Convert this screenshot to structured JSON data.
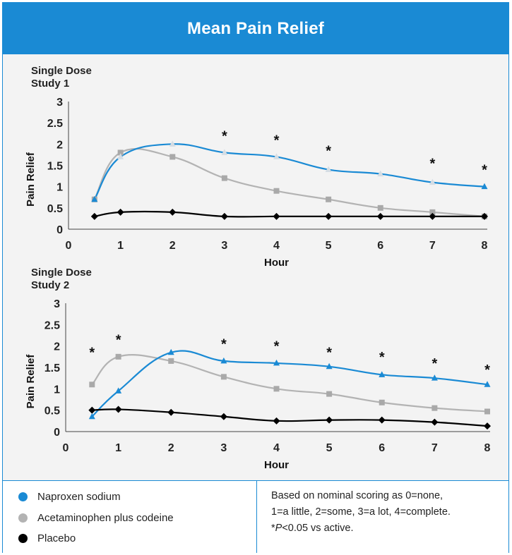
{
  "title": "Mean Pain Relief",
  "legend": [
    {
      "label": "Naproxen sodium",
      "color": "#1a8ad4"
    },
    {
      "label": "Acetaminophen plus codeine",
      "color": "#b3b3b3"
    },
    {
      "label": "Placebo",
      "color": "#000000"
    }
  ],
  "note": {
    "line1": "Based on nominal scoring as 0=none,",
    "line2": "1=a little, 2=some, 3=a lot, 4=complete.",
    "p_prefix": "*",
    "p_italic": "P",
    "p_suffix": "<0.05 vs active."
  },
  "chart_data": [
    {
      "type": "line",
      "title": "Single Dose Study 1",
      "title_lines": [
        "Single Dose",
        "Study 1"
      ],
      "xlabel": "Hour",
      "ylabel": "Pain Relief",
      "xlim": [
        0,
        8
      ],
      "ylim": [
        0,
        3
      ],
      "xticks": [
        0,
        1,
        2,
        3,
        4,
        5,
        6,
        7,
        8
      ],
      "yticks": [
        0,
        0.5,
        1,
        1.5,
        2,
        2.5,
        3
      ],
      "yticklabels": [
        "0",
        "0.5",
        "1",
        "1.5",
        "2",
        "2.5",
        "3"
      ],
      "series": [
        {
          "name": "Naproxen sodium",
          "color": "#1a8ad4",
          "marker": "triangle",
          "x": [
            0.5,
            1,
            2,
            3,
            4,
            5,
            6,
            7,
            8
          ],
          "values": [
            0.7,
            1.7,
            2.0,
            1.8,
            1.7,
            1.4,
            1.3,
            1.1,
            1.0
          ]
        },
        {
          "name": "Acetaminophen plus codeine",
          "color": "#b3b3b3",
          "marker": "square",
          "x": [
            0.5,
            1,
            2,
            3,
            4,
            5,
            6,
            7,
            8
          ],
          "values": [
            0.7,
            1.8,
            1.7,
            1.2,
            0.9,
            0.7,
            0.5,
            0.4,
            0.3
          ]
        },
        {
          "name": "Placebo",
          "color": "#000000",
          "marker": "diamond",
          "x": [
            0.5,
            1,
            2,
            3,
            4,
            5,
            6,
            7,
            8
          ],
          "values": [
            0.3,
            0.4,
            0.4,
            0.3,
            0.3,
            0.3,
            0.3,
            0.3,
            0.3
          ]
        }
      ],
      "significance": [
        {
          "x": 3,
          "y": 2.25,
          "label": "*"
        },
        {
          "x": 4,
          "y": 2.15,
          "label": "*"
        },
        {
          "x": 5,
          "y": 1.9,
          "label": "*"
        },
        {
          "x": 7,
          "y": 1.6,
          "label": "*"
        },
        {
          "x": 8,
          "y": 1.45,
          "label": "*"
        }
      ]
    },
    {
      "type": "line",
      "title": "Single Dose Study 2",
      "title_lines": [
        "Single Dose",
        "Study 2"
      ],
      "xlabel": "Hour",
      "ylabel": "Pain Relief",
      "xlim": [
        0,
        8
      ],
      "ylim": [
        0,
        3
      ],
      "xticks": [
        0,
        1,
        2,
        3,
        4,
        5,
        6,
        7,
        8
      ],
      "yticks": [
        0,
        0.5,
        1,
        1.5,
        2,
        2.5,
        3
      ],
      "yticklabels": [
        "0",
        "0.5",
        "1",
        "1.5",
        "2",
        "2.5",
        "3"
      ],
      "series": [
        {
          "name": "Naproxen sodium",
          "color": "#1a8ad4",
          "marker": "triangle",
          "x": [
            0.5,
            1,
            2,
            3,
            4,
            5,
            6,
            7,
            8
          ],
          "values": [
            0.35,
            0.95,
            1.85,
            1.65,
            1.6,
            1.52,
            1.33,
            1.25,
            1.1
          ]
        },
        {
          "name": "Acetaminophen plus codeine",
          "color": "#b3b3b3",
          "marker": "square",
          "x": [
            0.5,
            1,
            2,
            3,
            4,
            5,
            6,
            7,
            8
          ],
          "values": [
            1.1,
            1.75,
            1.65,
            1.28,
            1.0,
            0.88,
            0.68,
            0.55,
            0.47
          ]
        },
        {
          "name": "Placebo",
          "color": "#000000",
          "marker": "diamond",
          "x": [
            0.5,
            1,
            2,
            3,
            4,
            5,
            6,
            7,
            8
          ],
          "values": [
            0.5,
            0.52,
            0.45,
            0.35,
            0.25,
            0.27,
            0.27,
            0.22,
            0.13
          ]
        }
      ],
      "significance": [
        {
          "x": 0.5,
          "y": 1.9,
          "label": "*"
        },
        {
          "x": 1,
          "y": 2.2,
          "label": "*"
        },
        {
          "x": 3,
          "y": 2.1,
          "label": "*"
        },
        {
          "x": 4,
          "y": 2.05,
          "label": "*"
        },
        {
          "x": 5,
          "y": 1.9,
          "label": "*"
        },
        {
          "x": 6,
          "y": 1.8,
          "label": "*"
        },
        {
          "x": 7,
          "y": 1.65,
          "label": "*"
        },
        {
          "x": 8,
          "y": 1.5,
          "label": "*"
        }
      ]
    }
  ]
}
